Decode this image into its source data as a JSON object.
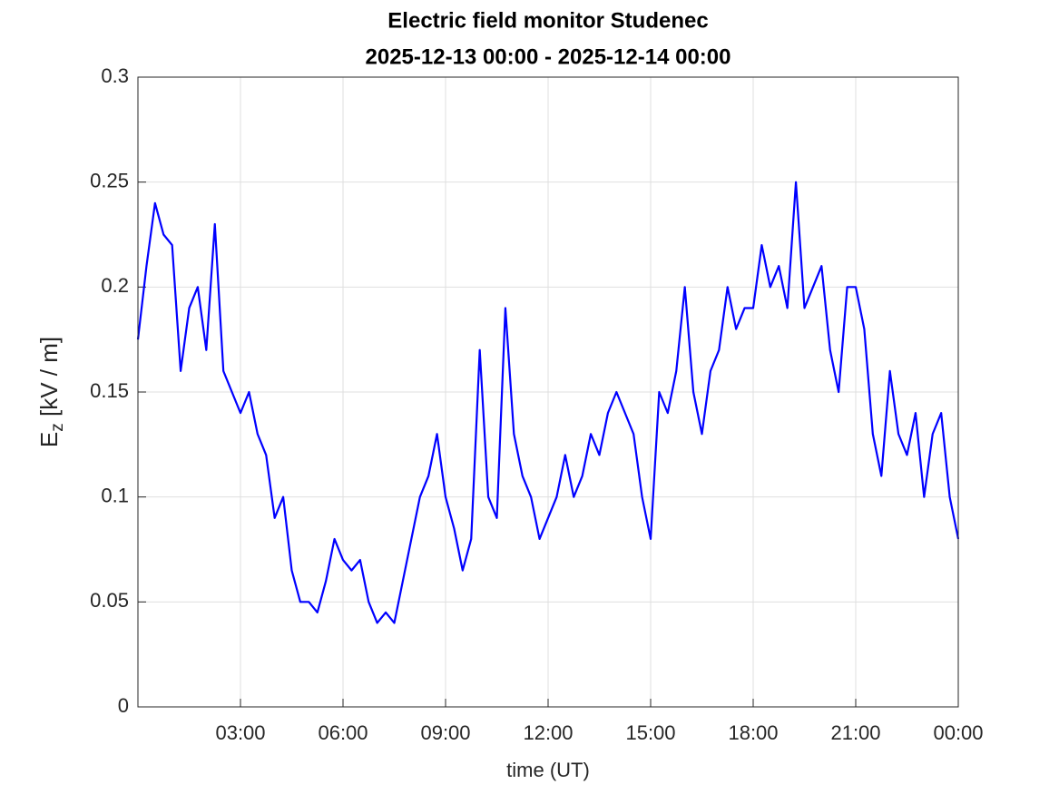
{
  "chart_data": {
    "type": "line",
    "title": "Electric field monitor Studenec",
    "subtitle": "2025-12-13 00:00 - 2025-12-14 00:00",
    "xlabel": "time (UT)",
    "ylabel": [
      "E",
      "z",
      " [kV / m]"
    ],
    "x": [
      0,
      0.25,
      0.5,
      0.75,
      1,
      1.25,
      1.5,
      1.75,
      2,
      2.25,
      2.5,
      2.75,
      3,
      3.25,
      3.5,
      3.75,
      4,
      4.25,
      4.5,
      4.75,
      5,
      5.25,
      5.5,
      5.75,
      6,
      6.25,
      6.5,
      6.75,
      7,
      7.25,
      7.5,
      7.75,
      8,
      8.25,
      8.5,
      8.75,
      9,
      9.25,
      9.5,
      9.75,
      10,
      10.25,
      10.5,
      10.75,
      11,
      11.25,
      11.5,
      11.75,
      12,
      12.25,
      12.5,
      12.75,
      13,
      13.25,
      13.5,
      13.75,
      14,
      14.25,
      14.5,
      14.75,
      15,
      15.25,
      15.5,
      15.75,
      16,
      16.25,
      16.5,
      16.75,
      17,
      17.25,
      17.5,
      17.75,
      18,
      18.25,
      18.5,
      18.75,
      19,
      19.25,
      19.5,
      19.75,
      20,
      20.25,
      20.5,
      20.75,
      21,
      21.25,
      21.5,
      21.75,
      22,
      22.25,
      22.5,
      22.75,
      23,
      23.25,
      23.5,
      23.75,
      24
    ],
    "series": [
      {
        "name": "Ez",
        "color": "#0000ff",
        "values": [
          0.175,
          0.21,
          0.24,
          0.225,
          0.22,
          0.16,
          0.19,
          0.2,
          0.17,
          0.23,
          0.16,
          0.15,
          0.14,
          0.15,
          0.13,
          0.12,
          0.09,
          0.1,
          0.065,
          0.05,
          0.05,
          0.045,
          0.06,
          0.08,
          0.07,
          0.065,
          0.07,
          0.05,
          0.04,
          0.045,
          0.04,
          0.06,
          0.08,
          0.1,
          0.11,
          0.13,
          0.1,
          0.085,
          0.065,
          0.08,
          0.17,
          0.1,
          0.09,
          0.19,
          0.13,
          0.11,
          0.1,
          0.08,
          0.09,
          0.1,
          0.12,
          0.1,
          0.11,
          0.13,
          0.12,
          0.14,
          0.15,
          0.14,
          0.13,
          0.1,
          0.08,
          0.15,
          0.14,
          0.16,
          0.2,
          0.15,
          0.13,
          0.16,
          0.17,
          0.2,
          0.18,
          0.19,
          0.19,
          0.22,
          0.2,
          0.21,
          0.19,
          0.25,
          0.19,
          0.2,
          0.21,
          0.17,
          0.15,
          0.2,
          0.2,
          0.18,
          0.13,
          0.11,
          0.16,
          0.13,
          0.12,
          0.14,
          0.1,
          0.13,
          0.14,
          0.1,
          0.08
        ]
      }
    ],
    "xlim": [
      0,
      24
    ],
    "xticks": [
      {
        "value": 3,
        "label": "03:00"
      },
      {
        "value": 6,
        "label": "06:00"
      },
      {
        "value": 9,
        "label": "09:00"
      },
      {
        "value": 12,
        "label": "12:00"
      },
      {
        "value": 15,
        "label": "15:00"
      },
      {
        "value": 18,
        "label": "18:00"
      },
      {
        "value": 21,
        "label": "21:00"
      },
      {
        "value": 24,
        "label": "00:00"
      }
    ],
    "ylim": [
      0,
      0.3
    ],
    "yticks": [
      0,
      0.05,
      0.1,
      0.15,
      0.2,
      0.25,
      0.3
    ],
    "grid": true
  }
}
